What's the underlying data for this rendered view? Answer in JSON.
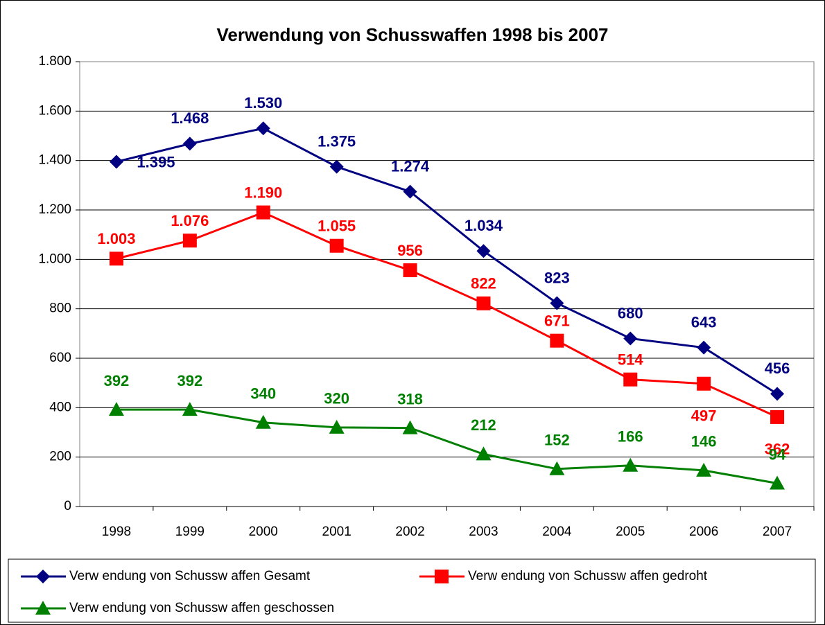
{
  "chart_data": {
    "type": "line",
    "title": "Verwendung von Schusswaffen 1998 bis 2007",
    "categories": [
      "1998",
      "1999",
      "2000",
      "2001",
      "2002",
      "2003",
      "2004",
      "2005",
      "2006",
      "2007"
    ],
    "ylim": [
      0,
      1800
    ],
    "yticks": [
      0,
      200,
      400,
      600,
      800,
      {
        "value": 1000,
        "label": "1.000"
      },
      {
        "value": 1200,
        "label": "1.200"
      },
      {
        "value": 1400,
        "label": "1.400"
      },
      {
        "value": 1600,
        "label": "1.600"
      },
      {
        "value": 1800,
        "label": "1.800"
      }
    ],
    "grid": true,
    "legend": "bottom",
    "series": [
      {
        "name": "Verw endung von Schussw affen Gesamt",
        "color": "#000080",
        "marker": "diamond",
        "values": [
          1395,
          1468,
          1530,
          1375,
          1274,
          1034,
          823,
          680,
          643,
          456
        ],
        "value_labels": [
          "1.395",
          "1.468",
          "1.530",
          "1.375",
          "1.274",
          "1.034",
          "823",
          "680",
          "643",
          "456"
        ]
      },
      {
        "name": "Verw endung von Schussw affen gedroht",
        "color": "#ff0000",
        "marker": "square",
        "values": [
          1003,
          1076,
          1190,
          1055,
          956,
          822,
          671,
          514,
          497,
          362
        ],
        "value_labels": [
          "1.003",
          "1.076",
          "1.190",
          "1.055",
          "956",
          "822",
          "671",
          "514",
          "497",
          "362"
        ]
      },
      {
        "name": "Verw endung von Schussw affen geschossen",
        "color": "#008000",
        "marker": "triangle",
        "values": [
          392,
          392,
          340,
          320,
          318,
          212,
          152,
          166,
          146,
          94
        ],
        "value_labels": [
          "392",
          "392",
          "340",
          "320",
          "318",
          "212",
          "152",
          "166",
          "146",
          "94"
        ]
      }
    ]
  }
}
